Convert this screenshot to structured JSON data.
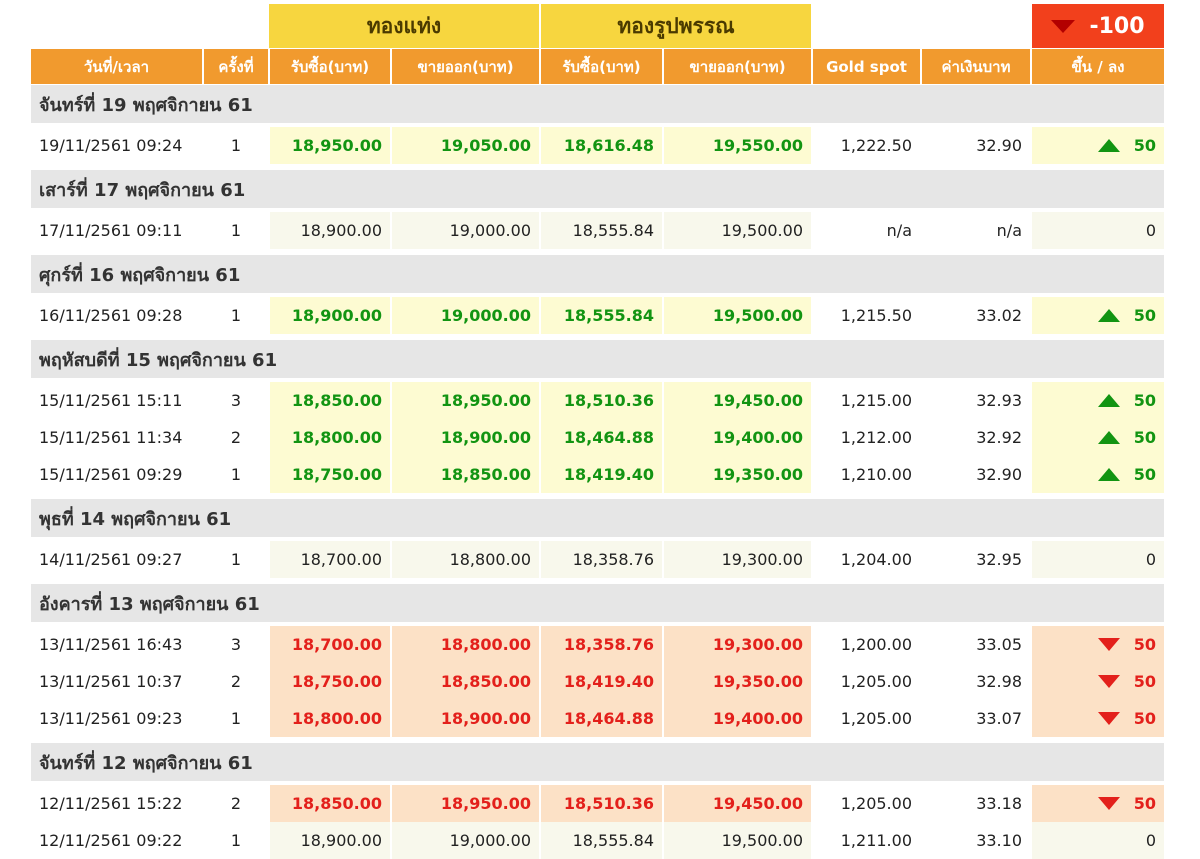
{
  "header": {
    "group_bar": "ทองแท่ง",
    "group_ornament": "ทองรูปพรรณ",
    "total_change": "-100",
    "columns": [
      "วันที่/เวลา",
      "ครั้งที่",
      "รับซื้อ(บาท)",
      "ขายออก(บาท)",
      "รับซื้อ(บาท)",
      "ขายออก(บาท)",
      "Gold spot",
      "ค่าเงินบาท",
      "ขึ้น / ลง"
    ]
  },
  "groups": [
    {
      "title": "จันทร์ที่ 19 พฤศจิกายน 61",
      "rows": [
        {
          "datetime": "19/11/2561 09:24",
          "round": "1",
          "bar_buy": "18,950.00",
          "bar_sell": "19,050.00",
          "orn_buy": "18,616.48",
          "orn_sell": "19,550.00",
          "spot": "1,222.50",
          "thb": "32.90",
          "trend": "up",
          "change": "50"
        }
      ]
    },
    {
      "title": "เสาร์ที่ 17 พฤศจิกายน 61",
      "rows": [
        {
          "datetime": "17/11/2561 09:11",
          "round": "1",
          "bar_buy": "18,900.00",
          "bar_sell": "19,000.00",
          "orn_buy": "18,555.84",
          "orn_sell": "19,500.00",
          "spot": "n/a",
          "thb": "n/a",
          "trend": "flat",
          "change": "0"
        }
      ]
    },
    {
      "title": "ศุกร์ที่ 16 พฤศจิกายน 61",
      "rows": [
        {
          "datetime": "16/11/2561 09:28",
          "round": "1",
          "bar_buy": "18,900.00",
          "bar_sell": "19,000.00",
          "orn_buy": "18,555.84",
          "orn_sell": "19,500.00",
          "spot": "1,215.50",
          "thb": "33.02",
          "trend": "up",
          "change": "50"
        }
      ]
    },
    {
      "title": "พฤหัสบดีที่ 15 พฤศจิกายน 61",
      "rows": [
        {
          "datetime": "15/11/2561 15:11",
          "round": "3",
          "bar_buy": "18,850.00",
          "bar_sell": "18,950.00",
          "orn_buy": "18,510.36",
          "orn_sell": "19,450.00",
          "spot": "1,215.00",
          "thb": "32.93",
          "trend": "up",
          "change": "50"
        },
        {
          "datetime": "15/11/2561 11:34",
          "round": "2",
          "bar_buy": "18,800.00",
          "bar_sell": "18,900.00",
          "orn_buy": "18,464.88",
          "orn_sell": "19,400.00",
          "spot": "1,212.00",
          "thb": "32.92",
          "trend": "up",
          "change": "50"
        },
        {
          "datetime": "15/11/2561 09:29",
          "round": "1",
          "bar_buy": "18,750.00",
          "bar_sell": "18,850.00",
          "orn_buy": "18,419.40",
          "orn_sell": "19,350.00",
          "spot": "1,210.00",
          "thb": "32.90",
          "trend": "up",
          "change": "50"
        }
      ]
    },
    {
      "title": "พุธที่ 14 พฤศจิกายน 61",
      "rows": [
        {
          "datetime": "14/11/2561 09:27",
          "round": "1",
          "bar_buy": "18,700.00",
          "bar_sell": "18,800.00",
          "orn_buy": "18,358.76",
          "orn_sell": "19,300.00",
          "spot": "1,204.00",
          "thb": "32.95",
          "trend": "flat",
          "change": "0"
        }
      ]
    },
    {
      "title": "อังคารที่ 13 พฤศจิกายน 61",
      "rows": [
        {
          "datetime": "13/11/2561 16:43",
          "round": "3",
          "bar_buy": "18,700.00",
          "bar_sell": "18,800.00",
          "orn_buy": "18,358.76",
          "orn_sell": "19,300.00",
          "spot": "1,200.00",
          "thb": "33.05",
          "trend": "down",
          "change": "50"
        },
        {
          "datetime": "13/11/2561 10:37",
          "round": "2",
          "bar_buy": "18,750.00",
          "bar_sell": "18,850.00",
          "orn_buy": "18,419.40",
          "orn_sell": "19,350.00",
          "spot": "1,205.00",
          "thb": "32.98",
          "trend": "down",
          "change": "50"
        },
        {
          "datetime": "13/11/2561 09:23",
          "round": "1",
          "bar_buy": "18,800.00",
          "bar_sell": "18,900.00",
          "orn_buy": "18,464.88",
          "orn_sell": "19,400.00",
          "spot": "1,205.00",
          "thb": "33.07",
          "trend": "down",
          "change": "50"
        }
      ]
    },
    {
      "title": "จันทร์ที่ 12 พฤศจิกายน 61",
      "rows": [
        {
          "datetime": "12/11/2561 15:22",
          "round": "2",
          "bar_buy": "18,850.00",
          "bar_sell": "18,950.00",
          "orn_buy": "18,510.36",
          "orn_sell": "19,450.00",
          "spot": "1,205.00",
          "thb": "33.18",
          "trend": "down",
          "change": "50"
        },
        {
          "datetime": "12/11/2561 09:22",
          "round": "1",
          "bar_buy": "18,900.00",
          "bar_sell": "19,000.00",
          "orn_buy": "18,555.84",
          "orn_sell": "19,500.00",
          "spot": "1,211.00",
          "thb": "33.10",
          "trend": "flat",
          "change": "0"
        }
      ]
    }
  ],
  "colors": {
    "header_yellow": "#f7d63f",
    "header_orange": "#f19a2e",
    "change_red_bg": "#f2401c",
    "up_green": "#129412",
    "down_red": "#e3201b",
    "day_bar": "#e6e6e6"
  },
  "icons": {
    "up": "triangle-up-icon",
    "down": "triangle-down-icon"
  }
}
